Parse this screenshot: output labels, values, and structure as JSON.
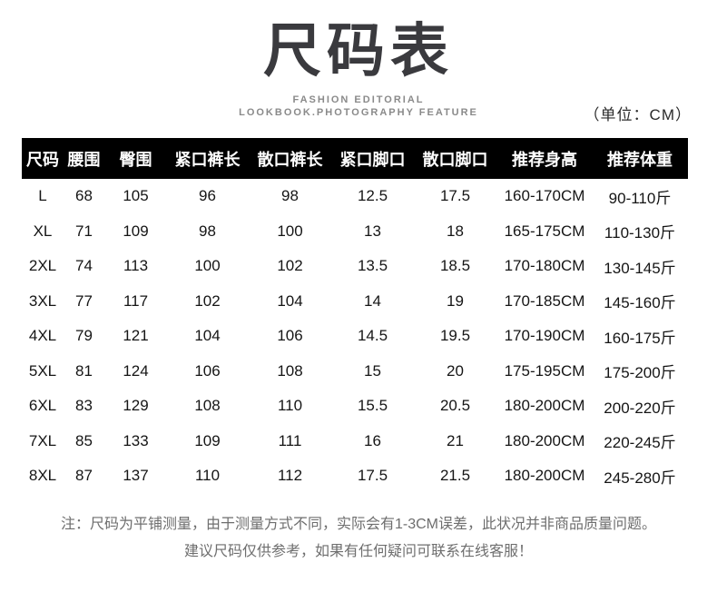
{
  "header": {
    "title": "尺码表",
    "subtitle_line1": "FASHION EDITORIAL",
    "subtitle_line2": "LOOKBOOK.PHOTOGRAPHY FEATURE",
    "unit_label": "（单位：CM）"
  },
  "colors": {
    "table_header_bg": "#000000",
    "table_header_text": "#ffffff",
    "title_text": "#3a3a3e",
    "subtitle_text": "#8a8a8a",
    "body_text": "#151515",
    "note_text": "#6e6e6e",
    "background": "#ffffff"
  },
  "table": {
    "headers": [
      "尺码",
      "腰围",
      "臀围",
      "紧口裤长",
      "散口裤长",
      "紧口脚口",
      "散口脚口",
      "推荐身高",
      "推荐体重"
    ],
    "rows": [
      [
        "L",
        "68",
        "105",
        "96",
        "98",
        "12.5",
        "17.5",
        "160-170CM",
        "90-110斤"
      ],
      [
        "XL",
        "71",
        "109",
        "98",
        "100",
        "13",
        "18",
        "165-175CM",
        "110-130斤"
      ],
      [
        "2XL",
        "74",
        "113",
        "100",
        "102",
        "13.5",
        "18.5",
        "170-180CM",
        "130-145斤"
      ],
      [
        "3XL",
        "77",
        "117",
        "102",
        "104",
        "14",
        "19",
        "170-185CM",
        "145-160斤"
      ],
      [
        "4XL",
        "79",
        "121",
        "104",
        "106",
        "14.5",
        "19.5",
        "170-190CM",
        "160-175斤"
      ],
      [
        "5XL",
        "81",
        "124",
        "106",
        "108",
        "15",
        "20",
        "175-195CM",
        "175-200斤"
      ],
      [
        "6XL",
        "83",
        "129",
        "108",
        "110",
        "15.5",
        "20.5",
        "180-200CM",
        "200-220斤"
      ],
      [
        "7XL",
        "85",
        "133",
        "109",
        "111",
        "16",
        "21",
        "180-200CM",
        "220-245斤"
      ],
      [
        "8XL",
        "87",
        "137",
        "110",
        "112",
        "17.5",
        "21.5",
        "180-200CM",
        "245-280斤"
      ]
    ]
  },
  "footer": {
    "note_line1": "注：尺码为平铺测量，由于测量方式不同，实际会有1-3CM误差，此状况并非商品质量问题。",
    "note_line2": "建议尺码仅供参考，如果有任何疑问可联系在线客服！"
  }
}
